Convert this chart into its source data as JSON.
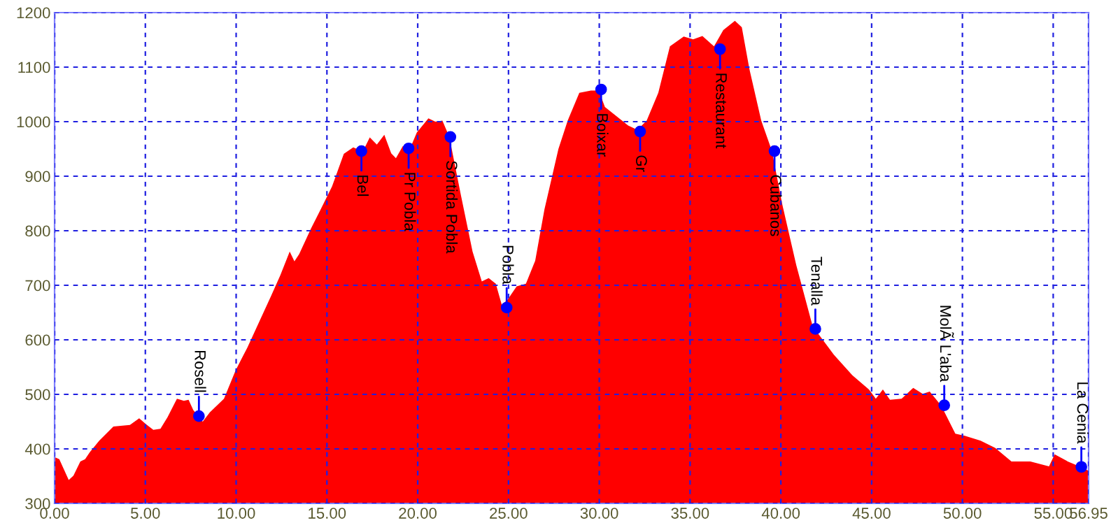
{
  "chart_data": {
    "type": "area",
    "color": "#ff0000",
    "x": [
      0,
      0.26,
      0.78,
      1.04,
      1.42,
      1.68,
      1.94,
      2.46,
      3.24,
      4.15,
      4.66,
      5.05,
      5.44,
      5.83,
      6.22,
      6.74,
      7.12,
      7.38,
      7.64,
      7.98,
      8.16,
      8.55,
      9.33,
      9.97,
      10.62,
      11.27,
      11.92,
      12.44,
      12.95,
      13.21,
      13.47,
      14.12,
      14.64,
      15.28,
      15.93,
      16.45,
      16.97,
      17.36,
      17.75,
      18.16,
      18.54,
      18.8,
      19.18,
      19.57,
      19.95,
      20.59,
      20.97,
      21.36,
      21.74,
      22.38,
      23.02,
      23.53,
      23.91,
      24.3,
      24.63,
      24.94,
      25.45,
      25.96,
      26.47,
      26.98,
      27.75,
      28.26,
      28.9,
      29.54,
      29.97,
      30.31,
      30.95,
      31.59,
      32.1,
      32.61,
      33.25,
      33.89,
      34.65,
      35.17,
      35.68,
      36.32,
      36.83,
      37.47,
      37.85,
      38.27,
      38.92,
      39.51,
      40.08,
      40.85,
      41.75,
      42.91,
      43.94,
      44.85,
      45.23,
      45.62,
      46.01,
      46.65,
      47.29,
      47.81,
      48.2,
      48.84,
      49.61,
      50.13,
      51.0,
      51.8,
      52.7,
      53.74,
      54.77,
      55.08,
      55.8,
      56.44,
      56.95
    ],
    "values": [
      385,
      381,
      343,
      351,
      377,
      381,
      394,
      415,
      441,
      444,
      456,
      445,
      435,
      437,
      458,
      492,
      488,
      490,
      471,
      458,
      450,
      467,
      492,
      544,
      586,
      633,
      680,
      719,
      762,
      744,
      757,
      804,
      838,
      881,
      941,
      953,
      945,
      971,
      958,
      976,
      942,
      933,
      955,
      950,
      980,
      1006,
      1000,
      1002,
      972,
      865,
      762,
      707,
      713,
      703,
      664,
      673,
      698,
      703,
      745,
      839,
      950,
      1002,
      1053,
      1057,
      1057,
      1027,
      1010,
      993,
      985,
      1002,
      1053,
      1138,
      1156,
      1151,
      1157,
      1138,
      1168,
      1185,
      1173,
      1096,
      1002,
      946,
      848,
      737,
      625,
      573,
      535,
      509,
      492,
      509,
      490,
      492,
      512,
      501,
      505,
      479,
      428,
      424,
      415,
      402,
      377,
      377,
      368,
      390,
      377,
      368,
      360
    ],
    "xlim": [
      0,
      56.95
    ],
    "ylim": [
      300,
      1200
    ],
    "xticks": [
      {
        "value": 0,
        "label": "0.00"
      },
      {
        "value": 5,
        "label": "5.00"
      },
      {
        "value": 10,
        "label": "10.00"
      },
      {
        "value": 15,
        "label": "15.00"
      },
      {
        "value": 20,
        "label": "20.00"
      },
      {
        "value": 25,
        "label": "25.00"
      },
      {
        "value": 30,
        "label": "30.00"
      },
      {
        "value": 35,
        "label": "35.00"
      },
      {
        "value": 40,
        "label": "40.00"
      },
      {
        "value": 45,
        "label": "45.00"
      },
      {
        "value": 50,
        "label": "50.00"
      },
      {
        "value": 55,
        "label": "55.00"
      },
      {
        "value": 56.95,
        "label": "56.95"
      }
    ],
    "yticks": [
      300,
      400,
      500,
      600,
      700,
      800,
      900,
      1000,
      1100,
      1200
    ],
    "grid": true,
    "annotations": [
      {
        "text": "Rosell",
        "x": 7.95,
        "y": 460
      },
      {
        "text": "Bel",
        "x": 16.9,
        "y": 946
      },
      {
        "text": "Pr Pobla",
        "x": 19.5,
        "y": 951
      },
      {
        "text": "Sortida Pobla",
        "x": 21.8,
        "y": 972
      },
      {
        "text": "Pobla",
        "x": 24.9,
        "y": 659
      },
      {
        "text": "Boixar",
        "x": 30.1,
        "y": 1059
      },
      {
        "text": "Gr",
        "x": 32.25,
        "y": 982
      },
      {
        "text": "Restaurant",
        "x": 36.65,
        "y": 1133
      },
      {
        "text": "Cubanos",
        "x": 39.65,
        "y": 946
      },
      {
        "text": "Tenalla",
        "x": 41.9,
        "y": 620
      },
      {
        "text": "MolÃ L'aba",
        "x": 49.0,
        "y": 480
      },
      {
        "text": "La Cenia",
        "x": 56.55,
        "y": 367
      }
    ]
  }
}
